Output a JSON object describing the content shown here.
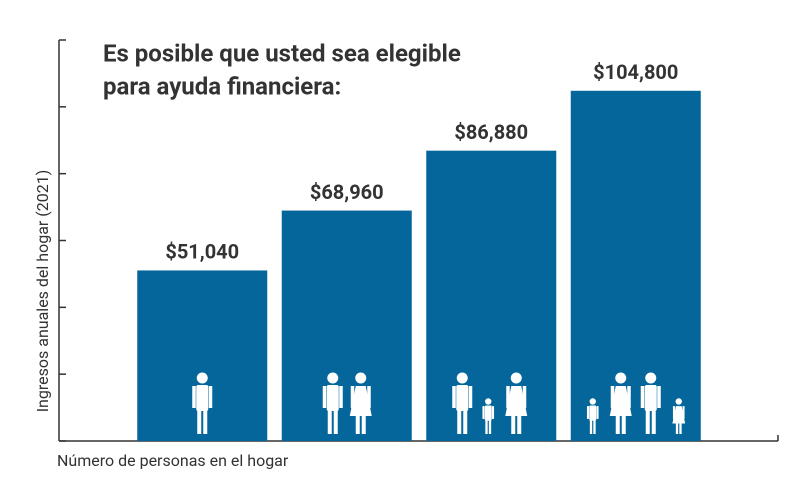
{
  "chart_data": {
    "type": "bar",
    "title_lines": [
      "Es posible que usted sea elegible",
      "para ayuda financiera:"
    ],
    "y_label": "Ingresos anuales del hogar (2021)",
    "x_label": "Número de personas en el hogar",
    "categories": [
      null,
      null,
      null,
      null
    ],
    "values": [
      51040,
      68960,
      86880,
      104800
    ],
    "value_labels": [
      "$51,040",
      "$68,960",
      "$86,880",
      "$104,800"
    ],
    "color": "#04669a",
    "ylim": [
      0,
      120000
    ],
    "yticks": [
      0,
      20000,
      40000,
      60000,
      80000,
      100000,
      120000
    ]
  }
}
